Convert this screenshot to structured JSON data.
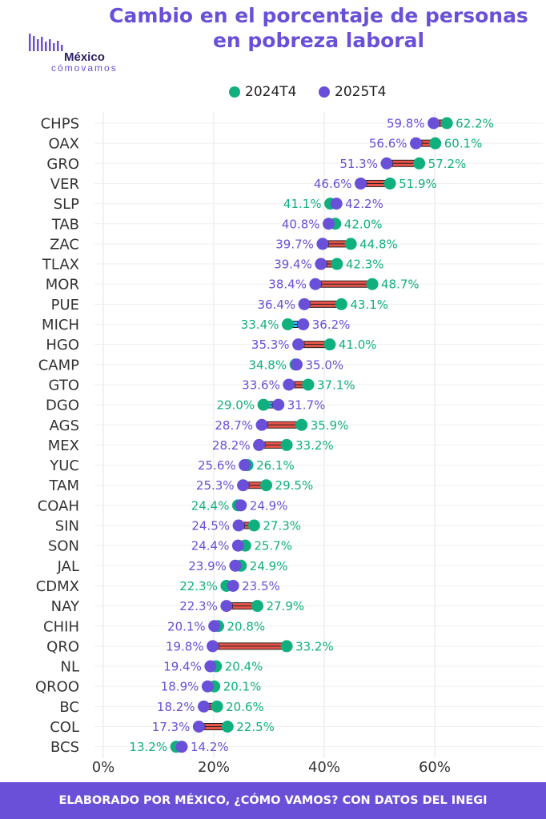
{
  "header": {
    "title_line1": "Cambio en el porcentaje de personas",
    "title_line2": "en pobreza laboral",
    "logo_word": "México",
    "logo_sub": "cómovamos"
  },
  "footer": {
    "text": "ELABORADO POR MÉXICO, ¿CÓMO VAMOS? CON DATOS DEL INEGI"
  },
  "colors": {
    "series_2024": "#10b07e",
    "series_2025": "#6a4fd8",
    "arrow": "#e8534a",
    "title": "#6a4fd8"
  },
  "chart_data": {
    "type": "dumbbell",
    "title": "Cambio en el porcentaje de personas en pobreza laboral",
    "xlabel": "",
    "ylabel": "",
    "xlim": [
      0,
      70
    ],
    "xticks": [
      0,
      20,
      40,
      60
    ],
    "xtick_labels": [
      "0%",
      "20%",
      "40%",
      "60%"
    ],
    "grid": true,
    "legend_position": "top",
    "series": [
      {
        "name": "2024T4",
        "color": "#10b07e"
      },
      {
        "name": "2025T4",
        "color": "#6a4fd8"
      }
    ],
    "categories": [
      "CHPS",
      "OAX",
      "GRO",
      "VER",
      "SLP",
      "TAB",
      "ZAC",
      "TLAX",
      "MOR",
      "PUE",
      "MICH",
      "HGO",
      "CAMP",
      "GTO",
      "DGO",
      "AGS",
      "MEX",
      "YUC",
      "TAM",
      "COAH",
      "SIN",
      "SON",
      "JAL",
      "CDMX",
      "NAY",
      "CHIH",
      "QRO",
      "NL",
      "QROO",
      "BC",
      "COL",
      "BCS"
    ],
    "values_2024T4": [
      62.2,
      60.1,
      57.2,
      51.9,
      41.1,
      42.0,
      44.8,
      42.3,
      48.7,
      43.1,
      33.4,
      41.0,
      34.8,
      37.1,
      29.0,
      35.9,
      33.2,
      26.1,
      29.5,
      24.4,
      27.3,
      25.7,
      24.9,
      22.3,
      27.9,
      20.8,
      33.2,
      20.4,
      20.1,
      20.6,
      22.5,
      13.2
    ],
    "values_2025T4": [
      59.8,
      56.6,
      51.3,
      46.6,
      42.2,
      40.8,
      39.7,
      39.4,
      38.4,
      36.4,
      36.2,
      35.3,
      35.0,
      33.6,
      31.7,
      28.7,
      28.2,
      25.6,
      25.3,
      24.9,
      24.5,
      24.4,
      23.9,
      23.5,
      22.3,
      20.1,
      19.8,
      19.4,
      18.9,
      18.2,
      17.3,
      14.2
    ],
    "labels_2024T4": [
      "62.2%",
      "60.1%",
      "57.2%",
      "51.9%",
      "41.1%",
      "42.0%",
      "44.8%",
      "42.3%",
      "48.7%",
      "43.1%",
      "33.4%",
      "41.0%",
      "34.8%",
      "37.1%",
      "29.0%",
      "35.9%",
      "33.2%",
      "26.1%",
      "29.5%",
      "24.4%",
      "27.3%",
      "25.7%",
      "24.9%",
      "22.3%",
      "27.9%",
      "20.8%",
      "33.2%",
      "20.4%",
      "20.1%",
      "20.6%",
      "22.5%",
      "13.2%"
    ],
    "labels_2025T4": [
      "59.8%",
      "56.6%",
      "51.3%",
      "46.6%",
      "42.2%",
      "40.8%",
      "39.7%",
      "39.4%",
      "38.4%",
      "36.4%",
      "36.2%",
      "35.3%",
      "35.0%",
      "33.6%",
      "31.7%",
      "28.7%",
      "28.2%",
      "25.6%",
      "25.3%",
      "24.9%",
      "24.5%",
      "24.4%",
      "23.9%",
      "23.5%",
      "22.3%",
      "20.1%",
      "19.8%",
      "19.4%",
      "18.9%",
      "18.2%",
      "17.3%",
      "14.2%"
    ]
  }
}
